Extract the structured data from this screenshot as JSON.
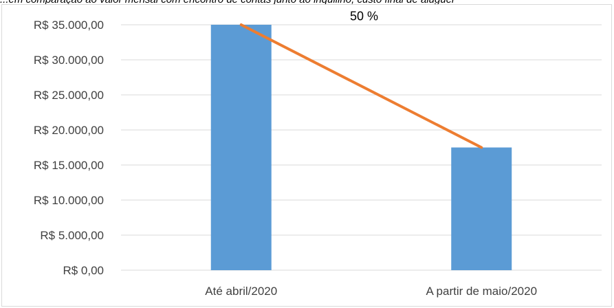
{
  "caption": "...em comparação ao valor mensal com encontro de contas junto ao inquilino, custo final de aluguel",
  "chart_data": {
    "type": "bar",
    "categories": [
      "Até abril/2020",
      "A partir de maio/2020"
    ],
    "values": [
      35000,
      17500
    ],
    "ylim": [
      0,
      35000
    ],
    "yticks": [
      0,
      5000,
      10000,
      15000,
      20000,
      25000,
      30000,
      35000
    ],
    "ytick_labels": [
      "R$ 0,00",
      "R$ 5.000,00",
      "R$ 10.000,00",
      "R$ 15.000,00",
      "R$ 20.000,00",
      "R$ 25.000,00",
      "R$ 30.000,00",
      "R$ 35.000,00"
    ],
    "grid": true,
    "legend": "none",
    "overlay_line": {
      "type": "line",
      "values": [
        35000,
        17500
      ]
    },
    "annotation": "50 %",
    "colors": {
      "bar": "#5b9bd5",
      "line": "#ed7d31",
      "grid": "#d9d9d9",
      "text": "#404040"
    }
  }
}
